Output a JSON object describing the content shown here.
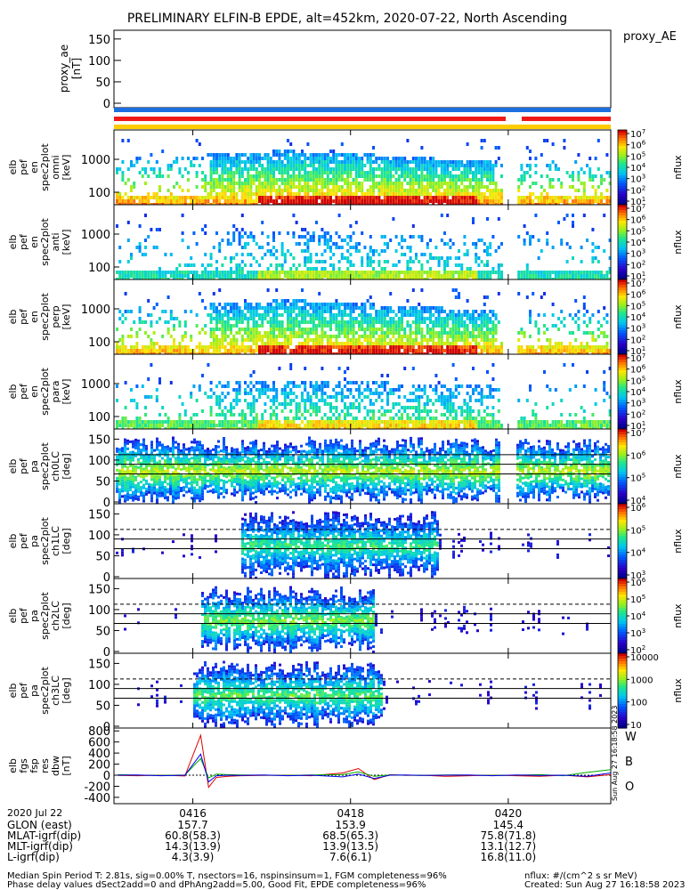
{
  "title": "PRELIMINARY ELFIN-B EPDE, alt=452km, 2020-07-22, North Ascending",
  "proxy": {
    "legend": "proxy_AE",
    "ylabel": [
      "proxy_ae",
      "[nT]"
    ],
    "yticks": [
      "150",
      "100",
      "50",
      "0"
    ]
  },
  "panels": [
    {
      "id": "en-omni",
      "ylabel": [
        "elb",
        "pef",
        "en",
        "spec2plot",
        "omni",
        "[keV]"
      ],
      "yticks": [
        "1000",
        "100"
      ],
      "cb_ticks": [
        "10^7",
        "10^6",
        "10^5",
        "10^4",
        "10^3",
        "10^2",
        "10^1"
      ],
      "cb_unit": "nflux"
    },
    {
      "id": "en-anti",
      "ylabel": [
        "elb",
        "pef",
        "en",
        "spec2plot",
        "anti",
        "[keV]"
      ],
      "yticks": [
        "1000",
        "100"
      ],
      "cb_ticks": [
        "10^7",
        "10^6",
        "10^5",
        "10^4",
        "10^3",
        "10^2",
        "10^1"
      ],
      "cb_unit": "nflux"
    },
    {
      "id": "en-perp",
      "ylabel": [
        "elb",
        "pef",
        "en",
        "spec2plot",
        "perp",
        "[keV]"
      ],
      "yticks": [
        "1000",
        "100"
      ],
      "cb_ticks": [
        "10^7",
        "10^6",
        "10^5",
        "10^4",
        "10^3",
        "10^2",
        "10^1"
      ],
      "cb_unit": "nflux"
    },
    {
      "id": "en-para",
      "ylabel": [
        "elb",
        "pef",
        "en",
        "spec2plot",
        "para",
        "[keV]"
      ],
      "yticks": [
        "1000",
        "100"
      ],
      "cb_ticks": [
        "10^7",
        "10^6",
        "10^5",
        "10^4",
        "10^3",
        "10^2",
        "10^1"
      ],
      "cb_unit": "nflux"
    },
    {
      "id": "pa-ch0",
      "ylabel": [
        "elb",
        "pef",
        "pa",
        "spec2plot",
        "ch0LC",
        "[deg]"
      ],
      "yticks": [
        "150",
        "100",
        "50",
        "0"
      ],
      "cb_ticks": [
        "10^7",
        "10^6",
        "10^5",
        "10^4"
      ],
      "cb_unit": "nflux"
    },
    {
      "id": "pa-ch1",
      "ylabel": [
        "elb",
        "pef",
        "pa",
        "spec2plot",
        "ch1LC",
        "[deg]"
      ],
      "yticks": [
        "150",
        "100",
        "50",
        "0"
      ],
      "cb_ticks": [
        "10^6",
        "10^5",
        "10^4",
        "10^3"
      ],
      "cb_unit": "nflux"
    },
    {
      "id": "pa-ch2",
      "ylabel": [
        "elb",
        "pef",
        "pa",
        "spec2plot",
        "ch2LC",
        "[deg]"
      ],
      "yticks": [
        "150",
        "100",
        "50",
        "0"
      ],
      "cb_ticks": [
        "10^6",
        "10^5",
        "10^4",
        "10^3",
        "10^2"
      ],
      "cb_unit": "nflux"
    },
    {
      "id": "pa-ch3",
      "ylabel": [
        "elb",
        "pef",
        "pa",
        "spec2plot",
        "ch3LC",
        "[deg]"
      ],
      "yticks": [
        "150",
        "100",
        "50",
        "0"
      ],
      "cb_ticks": [
        "10000",
        "1000",
        "100",
        "10"
      ],
      "cb_unit": "nflux"
    }
  ],
  "dbw": {
    "ylabel": [
      "elb",
      "fgs",
      "fsp",
      "res",
      "dbw",
      "[nT]"
    ],
    "yticks": [
      "800",
      "600",
      "400",
      "200",
      "0",
      "-200",
      "-400"
    ],
    "legend": [
      "W",
      "B",
      "O"
    ],
    "side_text": "Sun Aug 27 16:18:58 2023",
    "series_colors": {
      "W": "#dd0000",
      "B": "#00aa00",
      "O": "#0000ee"
    }
  },
  "chart_data": {
    "type": "heatmap",
    "time_axis": {
      "label": "2020 Jul 22",
      "ticks": [
        "0416",
        "0418",
        "0420"
      ],
      "minute_range": [
        15.0,
        21.3
      ]
    },
    "orbit_rows": [
      {
        "label": "GLON (east)",
        "values": [
          "157.7",
          "153.9",
          "145.4"
        ]
      },
      {
        "label": "MLAT-igrf(dip)",
        "values": [
          "60.8(58.3)",
          "68.5(65.3)",
          "75.8(71.8)"
        ]
      },
      {
        "label": "MLT-igrf(dip)",
        "values": [
          "14.3(13.9)",
          "13.9(13.5)",
          "13.1(12.7)"
        ]
      },
      {
        "label": "L-igrf(dip)",
        "values": [
          "4.3(3.9)",
          "7.6(6.1)",
          "16.8(11.0)"
        ]
      }
    ],
    "dbw_series": [
      {
        "name": "W",
        "x": [
          15.05,
          15.3,
          15.6,
          15.9,
          16.1,
          16.2,
          16.3,
          16.45,
          16.6,
          16.9,
          17.2,
          17.5,
          17.9,
          18.1,
          18.3,
          18.5,
          18.7,
          18.9,
          19.2,
          19.5,
          19.8,
          20.1,
          20.4,
          20.7,
          21.0,
          21.3
        ],
        "y": [
          -5,
          -10,
          0,
          -15,
          720,
          -220,
          -40,
          -20,
          -10,
          -5,
          0,
          -10,
          40,
          120,
          -80,
          10,
          -5,
          0,
          -20,
          -10,
          0,
          -10,
          -20,
          0,
          -30,
          10
        ]
      },
      {
        "name": "B",
        "x": [
          15.05,
          15.3,
          15.6,
          15.9,
          16.1,
          16.2,
          16.3,
          16.45,
          16.6,
          16.9,
          17.2,
          17.5,
          17.9,
          18.1,
          18.3,
          18.5,
          18.7,
          18.9,
          19.2,
          19.5,
          19.8,
          20.1,
          20.4,
          20.7,
          21.0,
          21.3
        ],
        "y": [
          10,
          0,
          -5,
          5,
          300,
          -50,
          20,
          10,
          5,
          0,
          -5,
          5,
          10,
          60,
          -20,
          5,
          0,
          -5,
          5,
          0,
          -5,
          0,
          10,
          -10,
          50,
          100
        ]
      },
      {
        "name": "O",
        "x": [
          15.05,
          15.3,
          15.6,
          15.9,
          16.1,
          16.2,
          16.3,
          16.45,
          16.6,
          16.9,
          17.2,
          17.5,
          17.9,
          18.1,
          18.3,
          18.5,
          18.7,
          18.9,
          19.2,
          19.5,
          19.8,
          20.1,
          20.4,
          20.7,
          21.0,
          21.3
        ],
        "y": [
          0,
          5,
          -10,
          0,
          380,
          -120,
          -10,
          0,
          -5,
          5,
          -10,
          0,
          -30,
          20,
          -60,
          0,
          5,
          -5,
          0,
          5,
          -10,
          5,
          -5,
          0,
          -20,
          40
        ]
      }
    ]
  },
  "footer": {
    "left": [
      "Median Spin Period T: 2.81s, sig=0.00% T, nsectors=16, nspinsinsum=1, FGM completeness=96%",
      "Phase delay values dSect2add=0 and dPhAng2add=5.00, Good Fit, EPDE completeness=96%"
    ],
    "right": [
      "nflux: #/(cm^2 s sr MeV)",
      "Created: Sun Aug 27 16:18:58 2023"
    ]
  }
}
